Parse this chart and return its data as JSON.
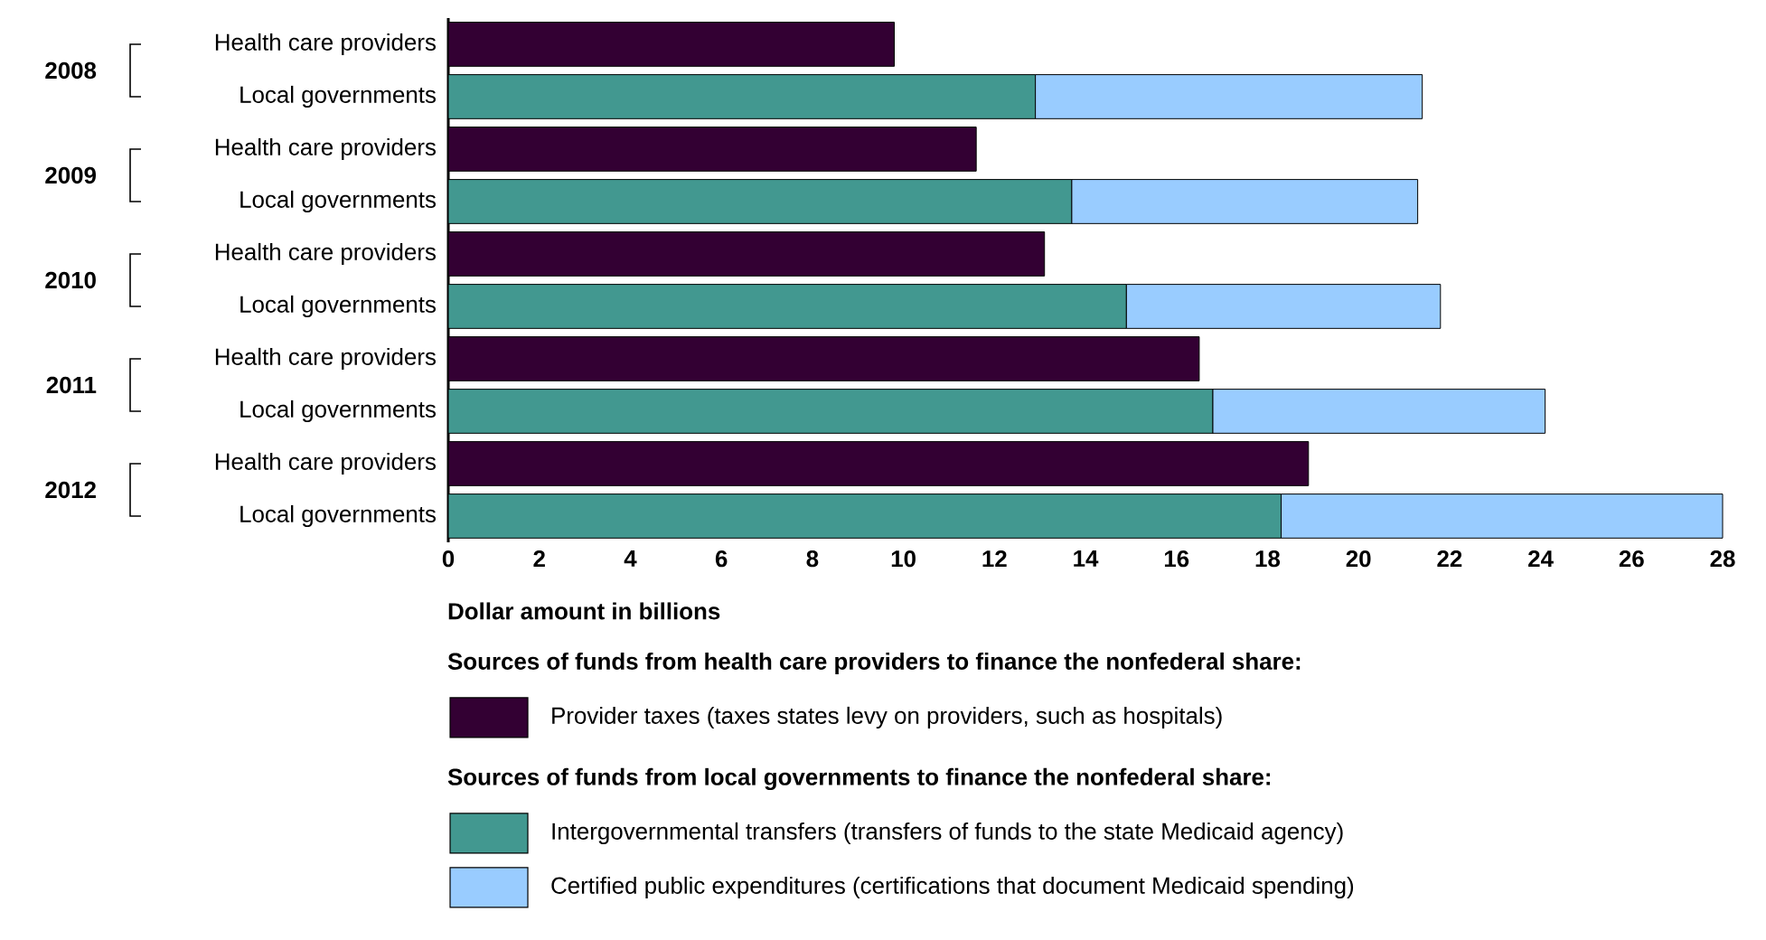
{
  "chart_data": {
    "type": "bar",
    "orientation": "horizontal",
    "stacked": true,
    "legend": "bottom",
    "categories": [
      "Health care providers",
      "Local governments",
      "Health care providers",
      "Local governments",
      "Health care providers",
      "Local governments",
      "Health care providers",
      "Local governments",
      "Health care providers",
      "Local governments"
    ],
    "series": [
      {
        "name": "Provider taxes (taxes states levy on providers, such as hospitals)",
        "color": "#330033",
        "values": [
          9.8,
          null,
          11.6,
          null,
          13.1,
          null,
          16.5,
          null,
          18.9,
          null
        ]
      },
      {
        "name": "Intergovernmental transfers (transfers of funds to the state Medicaid agency)",
        "color": "#429890",
        "values": [
          null,
          12.9,
          null,
          13.7,
          null,
          14.9,
          null,
          16.8,
          null,
          18.3
        ]
      },
      {
        "name": "Certified public expenditures (certifications that document Medicaid spending)",
        "color": "#99ccff",
        "values": [
          null,
          8.5,
          null,
          7.6,
          null,
          6.9,
          null,
          7.3,
          null,
          9.7
        ]
      }
    ],
    "xlabel": "Dollar amount in billions",
    "xlim": [
      0,
      28
    ],
    "xticks": [
      0,
      2,
      4,
      6,
      8,
      10,
      12,
      14,
      16,
      18,
      20,
      22,
      24,
      26,
      28
    ],
    "annotations": [
      "2008",
      "2009",
      "2010",
      "2011",
      "2012",
      "Sources of funds from health care providers to finance the nonfederal share:",
      "Sources of funds from local governments to finance the nonfederal share:"
    ]
  }
}
